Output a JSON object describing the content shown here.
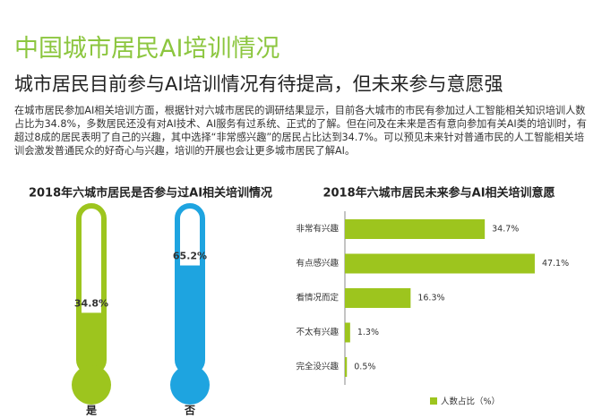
{
  "header": {
    "title": "中国城市居民AI培训情况",
    "subtitle": "城市居民目前参与AI培训情况有待提高，但未来参与意愿强",
    "paragraph": "在城市居民参加AI相关培训方面，根据针对六城市居民的调研结果显示，目前各大城市的市民有参加过人工智能相关知识培训人数占比为34.8%，多数居民还没有对AI技术、AI服务有过系统、正式的了解。但在问及在未来是否有意向参加有关AI类的培训时，有超过8成的居民表明了自己的兴趣，其中选择“非常感兴趣”的居民占比达到34.7%。可以预见未来针对普通市民的人工智能相关培训会激发普通民众的好奇心与兴趣，培训的开展也会让更多城市居民了解AI。"
  },
  "chart_data": [
    {
      "type": "thermometer",
      "title": "2018年六城市居民是否参与过AI相关培训情况",
      "categories": [
        "是",
        "否"
      ],
      "values": [
        34.8,
        65.2
      ],
      "value_labels": [
        "34.8%",
        "65.2%"
      ],
      "colors": [
        "#9dc51e",
        "#1ea4e0"
      ],
      "ylim": [
        0,
        100
      ]
    },
    {
      "type": "hbar",
      "title": "2018年六城市居民未来参与AI相关培训意愿",
      "categories": [
        "非常有兴趣",
        "有点感兴趣",
        "看情况而定",
        "不太有兴趣",
        "完全没兴趣"
      ],
      "series": [
        {
          "name": "人数占比（%）",
          "color": "#9dc51e",
          "values": [
            34.7,
            47.1,
            16.3,
            1.3,
            0.5
          ],
          "value_labels": [
            "34.7%",
            "47.1%",
            "16.3%",
            "1.3%",
            "0.5%"
          ]
        }
      ],
      "xlim": [
        0,
        50
      ],
      "legend": "bottom"
    }
  ]
}
